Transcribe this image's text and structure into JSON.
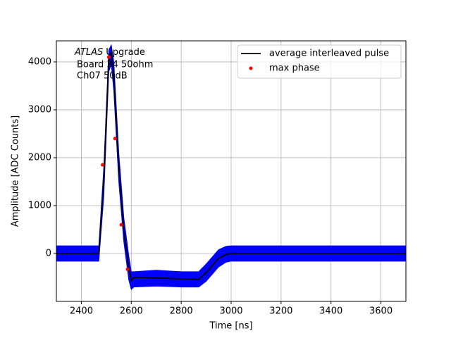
{
  "chart_data": {
    "type": "line",
    "xlabel": "Time [ns]",
    "ylabel": "Amplitude [ADC Counts]",
    "annotations": [
      {
        "text": "ATLAS",
        "style": "italic"
      },
      {
        "text": "Upgrade"
      },
      {
        "text": "Board 34 50ohm"
      },
      {
        "text": "Ch07 50dB"
      }
    ],
    "xlim": [
      2300,
      3700
    ],
    "xticks": [
      2400,
      2600,
      2800,
      3000,
      3200,
      3400,
      3600
    ],
    "ylim": [
      -1000,
      4440
    ],
    "yticks": [
      0,
      1000,
      2000,
      3000,
      4000
    ],
    "grid": true,
    "legend": "upper right",
    "band": {
      "color": "#0000ff",
      "x": [
        2300,
        2470,
        2490,
        2510,
        2520,
        2530,
        2550,
        2570,
        2590,
        2600,
        2610,
        2700,
        2800,
        2870,
        2900,
        2950,
        2980,
        3000,
        3700
      ],
      "lower": [
        -160,
        -160,
        1200,
        3800,
        3950,
        3400,
        1500,
        250,
        -550,
        -750,
        -700,
        -680,
        -700,
        -700,
        -580,
        -280,
        -180,
        -160,
        -160
      ],
      "upper": [
        160,
        160,
        1800,
        4250,
        4350,
        4000,
        2100,
        750,
        -50,
        -380,
        -380,
        -350,
        -380,
        -380,
        -220,
        80,
        150,
        160,
        160
      ]
    },
    "series": [
      {
        "name": "average interleaved pulse",
        "color": "#000000",
        "kind": "line",
        "x": [
          2300,
          2470,
          2490,
          2510,
          2520,
          2530,
          2550,
          2570,
          2590,
          2600,
          2610,
          2700,
          2800,
          2870,
          2900,
          2950,
          2980,
          3000,
          3700
        ],
        "values": [
          0,
          0,
          1500,
          4100,
          4200,
          3700,
          1800,
          500,
          -300,
          -570,
          -500,
          -510,
          -530,
          -540,
          -400,
          -100,
          -20,
          0,
          0
        ]
      },
      {
        "name": "max phase",
        "color": "#ff0000",
        "kind": "points",
        "x": [
          2485,
          2510,
          2535,
          2560,
          2585
        ],
        "values": [
          1850,
          4100,
          2400,
          600,
          -330
        ]
      }
    ]
  }
}
